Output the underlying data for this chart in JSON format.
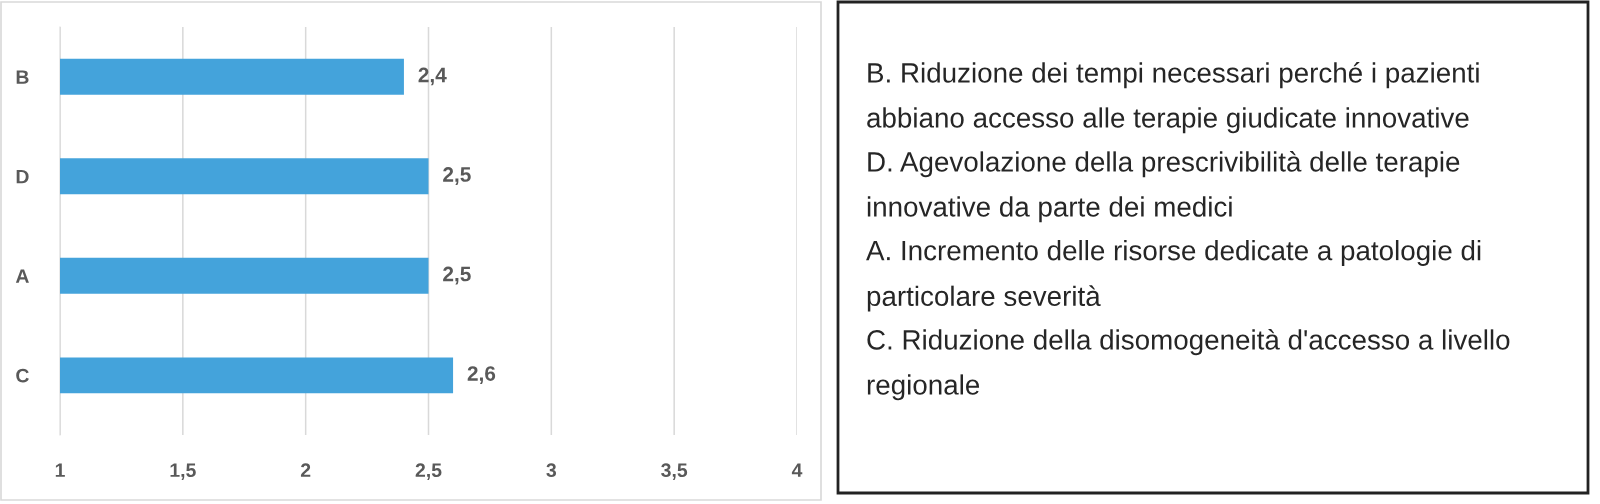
{
  "chart_data": [
    {
      "type": "bar",
      "orientation": "horizontal",
      "categories": [
        "B",
        "D",
        "A",
        "C"
      ],
      "values": [
        2.4,
        2.5,
        2.5,
        2.6
      ],
      "value_labels": [
        "2,4",
        "2,5",
        "2,5",
        "2,6"
      ],
      "color": "#44a3db",
      "xlim": [
        1,
        4
      ],
      "xticks": [
        1,
        {
          "value": 1.5,
          "label": "1,5"
        },
        2,
        {
          "value": 2.5,
          "label": "2,5"
        },
        3,
        {
          "value": 3.5,
          "label": "3,5"
        },
        4
      ],
      "grid": "x"
    },
    {
      "type": "other",
      "annotations": [
        "B. Riduzione dei tempi necessari perché i pazienti abbiano accesso alle terapie giudicate innovative",
        "D. Agevolazione della prescrivibilità delle terapie innovative da parte dei medici",
        "A. Incremento delle risorse dedicate a patologie di particolare severità",
        "C. Riduzione della disomogeneità d'accesso a livello regionale"
      ]
    }
  ]
}
